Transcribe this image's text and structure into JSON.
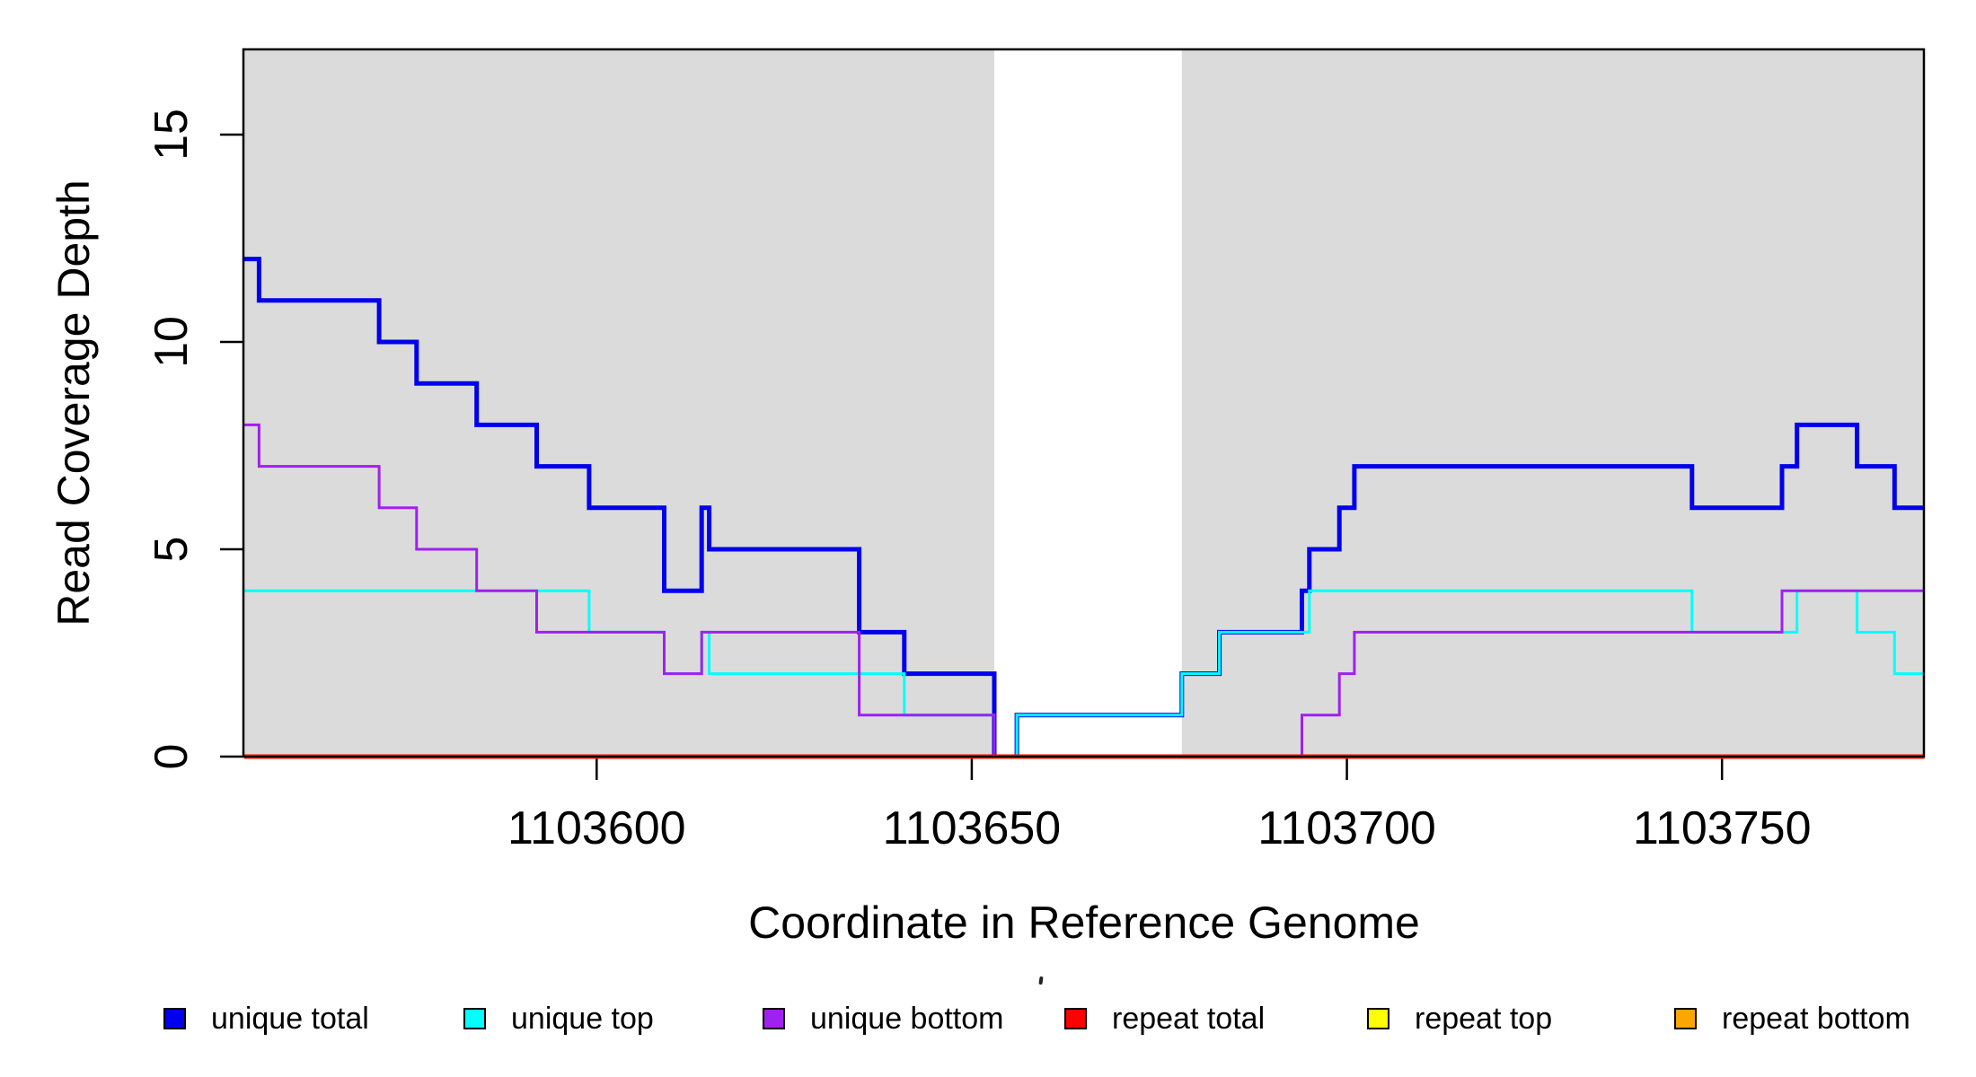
{
  "figure": {
    "background_color": "#FFFFFF",
    "shading_color": "#DBDBDB",
    "axis_color": "#000000"
  },
  "chart_data": {
    "type": "line",
    "subtype": "step",
    "title": "",
    "x_label": "Coordinate in Reference Genome",
    "y_label": "Read Coverage Depth",
    "x_range": [
      1103553,
      1103777
    ],
    "ylim": [
      0,
      17
    ],
    "grid": "off",
    "x_ticks": [
      "1103600",
      "1103650",
      "1103700",
      "1103750"
    ],
    "x_tick_values": [
      1103600,
      1103650,
      1103700,
      1103750
    ],
    "y_ticks": [
      "0",
      "5",
      "10",
      "15"
    ],
    "y_tick_values": [
      0,
      5,
      10,
      15
    ],
    "shaded_regions": [
      [
        1103553,
        1103653
      ],
      [
        1103678,
        1103777
      ]
    ],
    "unshaded_gap": [
      1103653,
      1103678
    ],
    "legend_position": "bottom",
    "series": [
      {
        "name": "unique total",
        "color": "#0000EE",
        "width": 5,
        "steps": [
          [
            1103553,
            12
          ],
          [
            1103555,
            11
          ],
          [
            1103571,
            10
          ],
          [
            1103576,
            9
          ],
          [
            1103584,
            8
          ],
          [
            1103592,
            7
          ],
          [
            1103599,
            6
          ],
          [
            1103609,
            4
          ],
          [
            1103614,
            6
          ],
          [
            1103615,
            5
          ],
          [
            1103635,
            3
          ],
          [
            1103641,
            2
          ],
          [
            1103653,
            0
          ],
          [
            1103656,
            1
          ],
          [
            1103678,
            2
          ],
          [
            1103683,
            3
          ],
          [
            1103694,
            4
          ],
          [
            1103695,
            5
          ],
          [
            1103699,
            6
          ],
          [
            1103701,
            7
          ],
          [
            1103746,
            6
          ],
          [
            1103758,
            7
          ],
          [
            1103760,
            8
          ],
          [
            1103768,
            7
          ],
          [
            1103773,
            6
          ]
        ]
      },
      {
        "name": "unique top",
        "color": "#00FFFF",
        "width": 3,
        "steps": [
          [
            1103553,
            4
          ],
          [
            1103599,
            3
          ],
          [
            1103609,
            2
          ],
          [
            1103614,
            3
          ],
          [
            1103615,
            2
          ],
          [
            1103641,
            1
          ],
          [
            1103653,
            0
          ],
          [
            1103656,
            1
          ],
          [
            1103678,
            2
          ],
          [
            1103683,
            3
          ],
          [
            1103695,
            4
          ],
          [
            1103746,
            3
          ],
          [
            1103760,
            4
          ],
          [
            1103768,
            3
          ],
          [
            1103773,
            2
          ]
        ]
      },
      {
        "name": "unique bottom",
        "color": "#A020F0",
        "width": 3,
        "steps": [
          [
            1103553,
            8
          ],
          [
            1103555,
            7
          ],
          [
            1103571,
            6
          ],
          [
            1103576,
            5
          ],
          [
            1103584,
            4
          ],
          [
            1103592,
            3
          ],
          [
            1103609,
            2
          ],
          [
            1103614,
            3
          ],
          [
            1103635,
            1
          ],
          [
            1103653,
            0
          ],
          [
            1103694,
            1
          ],
          [
            1103699,
            2
          ],
          [
            1103701,
            3
          ],
          [
            1103758,
            4
          ]
        ]
      },
      {
        "name": "repeat total",
        "color": "#FF0000",
        "width": 5,
        "steps": [
          [
            1103553,
            0
          ]
        ]
      },
      {
        "name": "repeat top",
        "color": "#FFFF00",
        "width": 2,
        "steps": [
          [
            1103553,
            0
          ]
        ]
      },
      {
        "name": "repeat bottom",
        "color": "#FFA500",
        "width": 3,
        "steps": [
          [
            1103553,
            0
          ]
        ]
      }
    ]
  },
  "legend": {
    "items": [
      {
        "label": "unique total",
        "color": "#0000EE"
      },
      {
        "label": "unique top",
        "color": "#00FFFF"
      },
      {
        "label": "unique bottom",
        "color": "#A020F0"
      },
      {
        "label": "repeat total",
        "color": "#FF0000"
      },
      {
        "label": "repeat top",
        "color": "#FFFF00"
      },
      {
        "label": "repeat bottom",
        "color": "#FFA500"
      }
    ]
  }
}
